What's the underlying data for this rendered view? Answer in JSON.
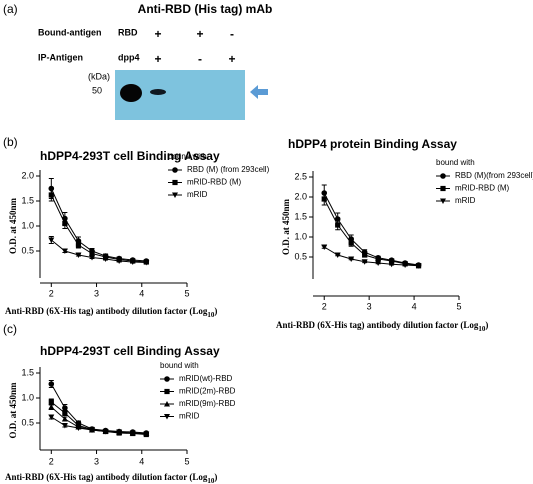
{
  "panel_labels": [
    "(a)",
    "(b)",
    "(c)"
  ],
  "blot": {
    "title": "Anti-RBD (His tag) mAb",
    "rows": [
      {
        "label": "Bound-antigen",
        "cells": [
          "RBD",
          "+",
          "+",
          "-"
        ]
      },
      {
        "label": "IP-Antigen",
        "cells": [
          "dpp4",
          "+",
          "-",
          "+"
        ]
      }
    ],
    "unit": "(kDa)",
    "size_marker": "50"
  },
  "chart_data": [
    {
      "type": "line",
      "title": "hDPP4-293T cell Binding Assay",
      "y_label": "O.D. at 450nm",
      "x_label": [
        "Anti-RBD (6X-His tag) antibody dilution factor (Log",
        "10",
        ")"
      ],
      "legend_title": "bound with",
      "x": [
        2,
        2.3,
        2.6,
        2.9,
        3.2,
        3.5,
        3.8,
        4.1
      ],
      "xlim": [
        1.75,
        5
      ],
      "xticks": [
        2,
        3,
        4,
        5
      ],
      "ylim": [
        0,
        2
      ],
      "yticks": [
        0.5,
        {
          "value": 1,
          "label": "1.0"
        },
        1.5,
        {
          "value": 2,
          "label": "2.0"
        }
      ],
      "series": [
        {
          "name": "RBD (M) (from 293cell)",
          "color": "#000000",
          "marker": "circle",
          "values": [
            1.75,
            1.15,
            0.7,
            0.5,
            0.4,
            0.35,
            0.32,
            0.3
          ],
          "errors": [
            0.2,
            0.12,
            0.08,
            0.05,
            0.04,
            0.03,
            0.02,
            0.02
          ]
        },
        {
          "name": "mRID-RBD (M)",
          "color": "#000000",
          "marker": "square",
          "values": [
            1.62,
            1.05,
            0.62,
            0.45,
            0.38,
            0.33,
            0.3,
            0.28
          ],
          "errors": [
            0.12,
            0.1,
            0.06,
            0.04,
            0.03,
            0.02,
            0.02,
            0.02
          ]
        },
        {
          "name": "mRID",
          "color": "#000000",
          "marker": "triangle-down",
          "values": [
            0.72,
            0.5,
            0.42,
            0.37,
            0.34,
            0.3,
            0.28,
            0.27
          ],
          "errors": [
            0.07,
            0.03,
            0.02,
            0.02,
            0.02,
            0.02,
            0.02,
            0.02
          ]
        }
      ]
    },
    {
      "type": "line",
      "title": "hDPP4 protein Binding Assay",
      "y_label": "O.D. at 450nm",
      "x_label": [
        "Anti-RBD (6X-His tag) antibody dilution factor (Log",
        "10",
        ")"
      ],
      "legend_title": "bound with",
      "x": [
        2,
        2.3,
        2.6,
        2.9,
        3.2,
        3.5,
        3.8,
        4.1
      ],
      "xlim": [
        1.75,
        5
      ],
      "xticks": [
        2,
        3,
        4,
        5
      ],
      "ylim": [
        0,
        2.5
      ],
      "yticks": [
        0.5,
        {
          "value": 1,
          "label": "1.0"
        },
        1.5,
        {
          "value": 2,
          "label": "2.0"
        },
        2.5
      ],
      "series": [
        {
          "name": "RBD (M)(from 293cell)",
          "color": "#000000",
          "marker": "circle",
          "values": [
            2.1,
            1.45,
            0.95,
            0.62,
            0.48,
            0.42,
            0.35,
            0.3
          ],
          "errors": [
            0.2,
            0.15,
            0.1,
            0.06,
            0.04,
            0.03,
            0.03,
            0.02
          ]
        },
        {
          "name": "mRID-RBD (M)",
          "color": "#000000",
          "marker": "square",
          "values": [
            1.95,
            1.3,
            0.85,
            0.55,
            0.45,
            0.4,
            0.33,
            0.28
          ],
          "errors": [
            0.15,
            0.12,
            0.08,
            0.05,
            0.04,
            0.03,
            0.02,
            0.02
          ]
        },
        {
          "name": "mRID",
          "color": "#000000",
          "marker": "triangle-down",
          "values": [
            0.75,
            0.55,
            0.45,
            0.38,
            0.35,
            0.32,
            0.3,
            0.28
          ],
          "errors": [
            0.03,
            0.02,
            0.02,
            0.02,
            0.02,
            0.02,
            0.02,
            0.02
          ]
        }
      ]
    },
    {
      "type": "line",
      "title": "hDPP4-293T cell Binding Assay",
      "y_label": "O.D. at 450nm",
      "x_label": [
        "Anti-RBD (6X-His tag) antibody dilution factor (Log",
        "10",
        ")"
      ],
      "legend_title": "bound with",
      "x": [
        2,
        2.3,
        2.6,
        2.9,
        3.2,
        3.5,
        3.8,
        4.1
      ],
      "xlim": [
        1.75,
        5
      ],
      "xticks": [
        2,
        3,
        4,
        5
      ],
      "ylim": [
        0,
        1.5
      ],
      "yticks": [
        0.5,
        {
          "value": 1,
          "label": "1.0"
        },
        1.5
      ],
      "series": [
        {
          "name": "mRID(wt)-RBD",
          "color": "#000000",
          "marker": "circle",
          "values": [
            1.28,
            0.8,
            0.5,
            0.38,
            0.35,
            0.33,
            0.32,
            0.3
          ],
          "errors": [
            0.07,
            0.07,
            0.04,
            0.03,
            0.02,
            0.02,
            0.02,
            0.02
          ]
        },
        {
          "name": "mRID(2m)-RBD",
          "color": "#000000",
          "marker": "square",
          "values": [
            0.92,
            0.7,
            0.45,
            0.37,
            0.33,
            0.3,
            0.29,
            0.27
          ],
          "errors": [
            0.06,
            0.05,
            0.03,
            0.02,
            0.02,
            0.02,
            0.02,
            0.02
          ]
        },
        {
          "name": "mRID(9m)-RBD",
          "color": "#000000",
          "marker": "triangle-up",
          "values": [
            0.82,
            0.58,
            0.42,
            0.36,
            0.33,
            0.31,
            0.3,
            0.29
          ],
          "errors": [
            0.05,
            0.04,
            0.03,
            0.02,
            0.02,
            0.02,
            0.02,
            0.02
          ]
        },
        {
          "name": "mRID",
          "color": "#000000",
          "marker": "triangle-down",
          "values": [
            0.62,
            0.45,
            0.4,
            0.36,
            0.33,
            0.32,
            0.3,
            0.28
          ],
          "errors": [
            0.04,
            0.03,
            0.02,
            0.02,
            0.02,
            0.02,
            0.02,
            0.02
          ]
        }
      ]
    }
  ]
}
